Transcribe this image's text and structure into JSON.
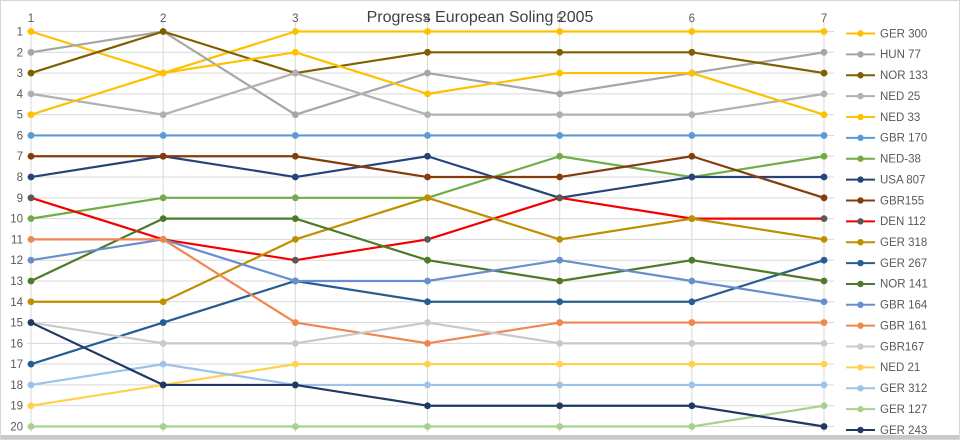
{
  "chart_data": {
    "type": "line",
    "title": "Progress European Soling 2005",
    "x": [
      "1",
      "2",
      "3",
      "4",
      "5",
      "6",
      "7"
    ],
    "xlabel": "",
    "ylabel": "",
    "y_axis": {
      "min": 1,
      "max": 20,
      "step": 1,
      "reversed": true
    },
    "x_axis_labels_position": "top",
    "grid": true,
    "legend_position": "right",
    "series": [
      {
        "name": "GER 300",
        "color": "#FFC000",
        "marker": "#FFC000",
        "values": [
          1,
          3,
          1,
          1,
          1,
          1,
          1
        ]
      },
      {
        "name": "HUN 77",
        "color": "#A6A6A6",
        "marker": "#A6A6A6",
        "values": [
          2,
          1,
          5,
          3,
          4,
          3,
          2
        ]
      },
      {
        "name": "NOR 133",
        "color": "#7F6000",
        "marker": "#7F6000",
        "values": [
          3,
          1,
          3,
          2,
          2,
          2,
          3
        ]
      },
      {
        "name": "NED 25",
        "color": "#B1B1B1",
        "marker": "#B1B1B1",
        "values": [
          4,
          5,
          3,
          5,
          5,
          5,
          4
        ]
      },
      {
        "name": "NED 33",
        "color": "#FFC000",
        "marker": "#FFC000",
        "values": [
          5,
          3,
          2,
          4,
          3,
          3,
          5
        ]
      },
      {
        "name": "GBR 170",
        "color": "#5B9BD5",
        "marker": "#5B9BD5",
        "values": [
          6,
          6,
          6,
          6,
          6,
          6,
          6
        ]
      },
      {
        "name": "NED-38",
        "color": "#70AD47",
        "marker": "#70AD47",
        "values": [
          10,
          9,
          9,
          9,
          7,
          8,
          7
        ]
      },
      {
        "name": "USA 807",
        "color": "#264478",
        "marker": "#264478",
        "values": [
          8,
          7,
          8,
          7,
          9,
          8,
          8
        ]
      },
      {
        "name": "GBR155",
        "color": "#843C0C",
        "marker": "#843C0C",
        "values": [
          7,
          7,
          7,
          8,
          8,
          7,
          9
        ]
      },
      {
        "name": "DEN 112",
        "color": "#F40000",
        "marker": "#595959",
        "values": [
          9,
          11,
          12,
          11,
          9,
          10,
          10
        ]
      },
      {
        "name": "GER 318",
        "color": "#BF8F00",
        "marker": "#BF8F00",
        "values": [
          14,
          14,
          11,
          9,
          11,
          10,
          11
        ]
      },
      {
        "name": "GER 267",
        "color": "#255E91",
        "marker": "#255E91",
        "values": [
          17,
          15,
          13,
          14,
          14,
          14,
          12
        ]
      },
      {
        "name": "NOR 141",
        "color": "#4F7A28",
        "marker": "#4F7A28",
        "values": [
          13,
          10,
          10,
          12,
          13,
          12,
          13
        ]
      },
      {
        "name": "GBR 164",
        "color": "#698ED0",
        "marker": "#698ED0",
        "values": [
          12,
          11,
          13,
          13,
          12,
          13,
          14
        ]
      },
      {
        "name": "GBR 161",
        "color": "#F08650",
        "marker": "#F08650",
        "values": [
          11,
          11,
          15,
          16,
          15,
          15,
          15
        ]
      },
      {
        "name": "GBR167",
        "color": "#C9C9C9",
        "marker": "#C9C9C9",
        "values": [
          15,
          16,
          16,
          15,
          16,
          16,
          16
        ]
      },
      {
        "name": "NED 21",
        "color": "#FFD24D",
        "marker": "#FFD24D",
        "values": [
          19,
          18,
          17,
          17,
          17,
          17,
          17
        ]
      },
      {
        "name": "GER 312",
        "color": "#9DC3E6",
        "marker": "#9DC3E6",
        "values": [
          18,
          17,
          18,
          18,
          18,
          18,
          18
        ]
      },
      {
        "name": "GER 127",
        "color": "#A9D18E",
        "marker": "#A9D18E",
        "values": [
          20,
          20,
          20,
          20,
          20,
          20,
          19
        ]
      },
      {
        "name": "GER 243",
        "color": "#1F3864",
        "marker": "#1F3864",
        "values": [
          15,
          18,
          18,
          19,
          19,
          19,
          20
        ]
      }
    ]
  },
  "styles": {
    "background": "#FFFFFF",
    "grid_color": "#D9D9D9",
    "tick_label_color": "#595959",
    "title_color": "#404040",
    "legend_text_color": "#595959",
    "frame_border_color": "#D6D6D6",
    "bottom_edge_color": "#C9C9C9"
  }
}
